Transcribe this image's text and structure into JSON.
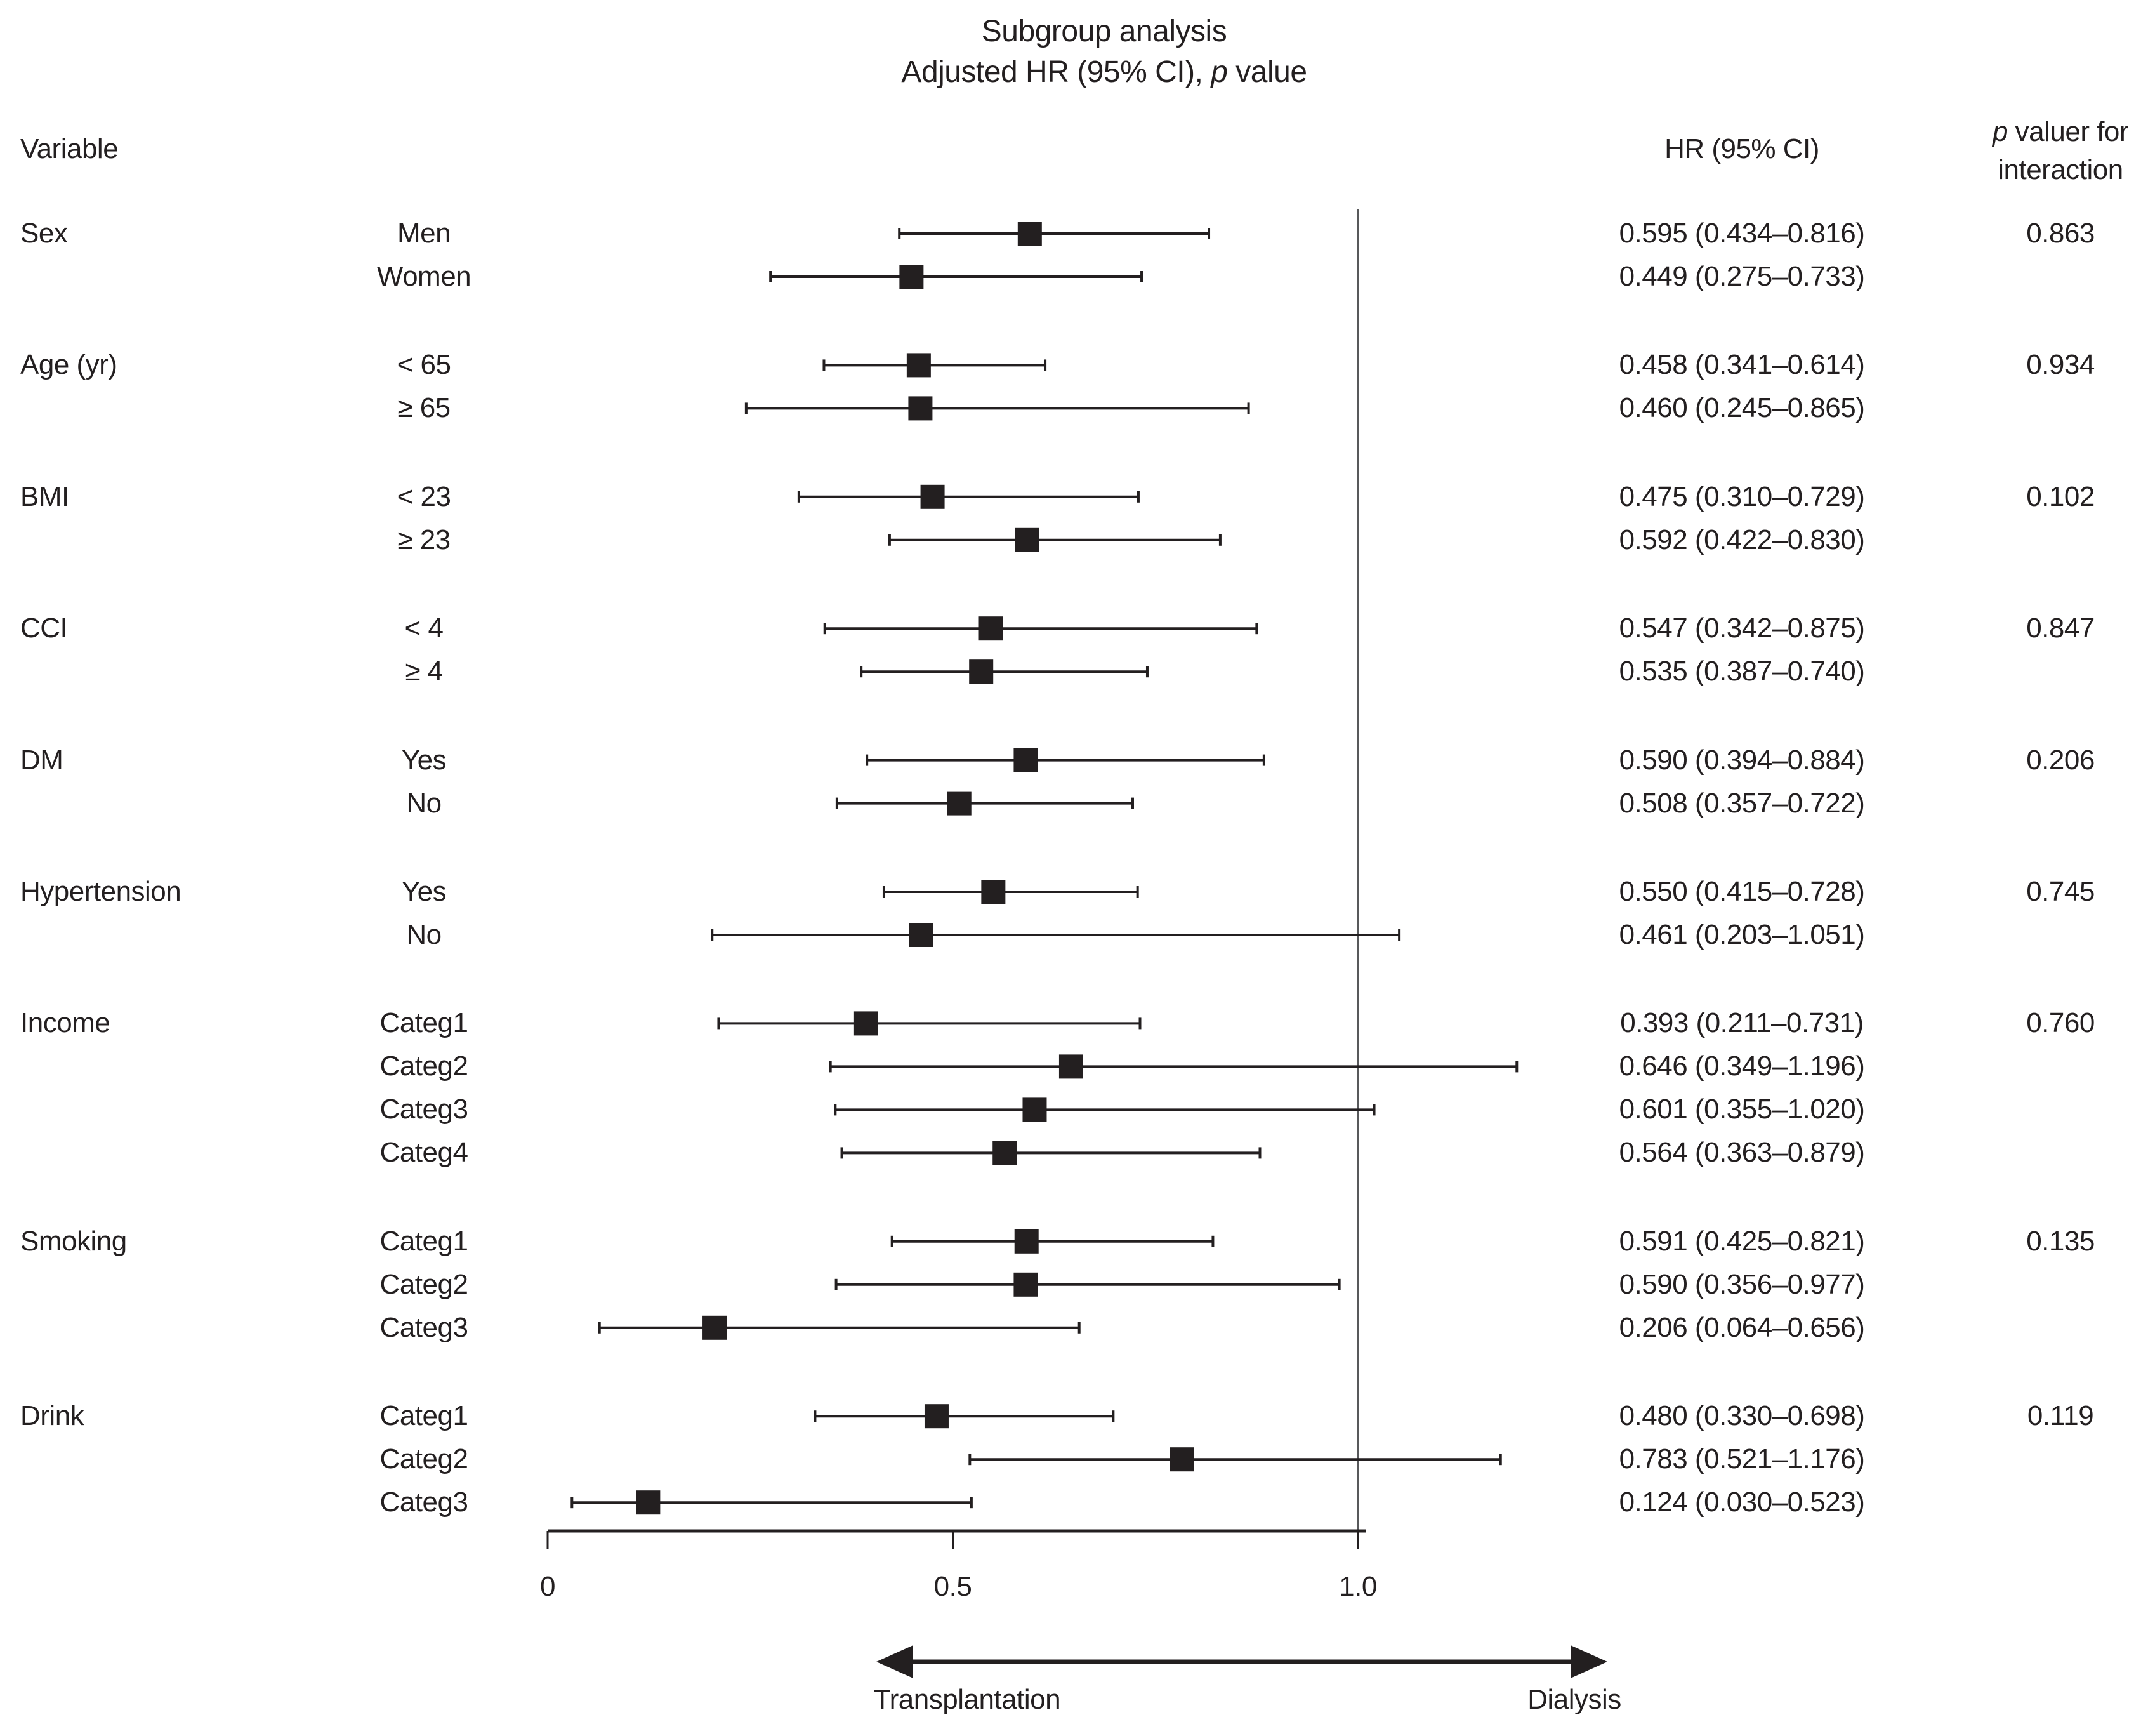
{
  "title": {
    "line1": "Subgroup analysis",
    "line2_prefix": "Adjusted HR (95% CI), ",
    "line2_italic": "p",
    "line2_suffix": " value"
  },
  "columns": {
    "variable_header": "Variable",
    "hr_header": "HR (95% CI)",
    "p_header_italic": "p",
    "p_header_rest": " valuer for",
    "p_header_line2": "interaction"
  },
  "axis": {
    "tick_values": [
      0,
      0.5,
      1.0
    ],
    "tick_labels": [
      "0",
      "0.5",
      "1.0"
    ],
    "reference_value": 1.0
  },
  "direction_arrow": {
    "left_label": "Transplantation",
    "right_label": "Dialysis"
  },
  "colors": {
    "ink": "#231f20",
    "reference_line": "#58595b"
  },
  "chart_data": {
    "type": "scatter",
    "subtype": "forest-plot",
    "title": "Subgroup analysis",
    "subtitle": "Adjusted HR (95% CI), p value",
    "xlim": [
      0,
      1.25
    ],
    "x_ticks": [
      0,
      0.5,
      1.0
    ],
    "x_tick_labels": [
      "0",
      "0.5",
      "1.0"
    ],
    "reference_line": 1.0,
    "left_direction_label": "Transplantation",
    "right_direction_label": "Dialysis",
    "groups": [
      {
        "variable": "Sex",
        "p_interaction": "0.863",
        "rows": [
          {
            "label": "Men",
            "hr": 0.595,
            "lo": 0.434,
            "hi": 0.816,
            "text": "0.595 (0.434–0.816)"
          },
          {
            "label": "Women",
            "hr": 0.449,
            "lo": 0.275,
            "hi": 0.733,
            "text": "0.449 (0.275–0.733)"
          }
        ]
      },
      {
        "variable": "Age (yr)",
        "p_interaction": "0.934",
        "rows": [
          {
            "label": "< 65",
            "hr": 0.458,
            "lo": 0.341,
            "hi": 0.614,
            "text": "0.458 (0.341–0.614)"
          },
          {
            "label": "≥ 65",
            "hr": 0.46,
            "lo": 0.245,
            "hi": 0.865,
            "text": "0.460 (0.245–0.865)"
          }
        ]
      },
      {
        "variable": "BMI",
        "p_interaction": "0.102",
        "rows": [
          {
            "label": "< 23",
            "hr": 0.475,
            "lo": 0.31,
            "hi": 0.729,
            "text": "0.475 (0.310–0.729)"
          },
          {
            "label": "≥ 23",
            "hr": 0.592,
            "lo": 0.422,
            "hi": 0.83,
            "text": "0.592 (0.422–0.830)"
          }
        ]
      },
      {
        "variable": "CCI",
        "p_interaction": "0.847",
        "rows": [
          {
            "label": "< 4",
            "hr": 0.547,
            "lo": 0.342,
            "hi": 0.875,
            "text": "0.547 (0.342–0.875)"
          },
          {
            "label": "≥ 4",
            "hr": 0.535,
            "lo": 0.387,
            "hi": 0.74,
            "text": "0.535 (0.387–0.740)"
          }
        ]
      },
      {
        "variable": "DM",
        "p_interaction": "0.206",
        "rows": [
          {
            "label": "Yes",
            "hr": 0.59,
            "lo": 0.394,
            "hi": 0.884,
            "text": "0.590 (0.394–0.884)"
          },
          {
            "label": "No",
            "hr": 0.508,
            "lo": 0.357,
            "hi": 0.722,
            "text": "0.508 (0.357–0.722)"
          }
        ]
      },
      {
        "variable": "Hypertension",
        "p_interaction": "0.745",
        "rows": [
          {
            "label": "Yes",
            "hr": 0.55,
            "lo": 0.415,
            "hi": 0.728,
            "text": "0.550 (0.415–0.728)"
          },
          {
            "label": "No",
            "hr": 0.461,
            "lo": 0.203,
            "hi": 1.051,
            "text": "0.461 (0.203–1.051)"
          }
        ]
      },
      {
        "variable": "Income",
        "p_interaction": "0.760",
        "rows": [
          {
            "label": "Categ1",
            "hr": 0.393,
            "lo": 0.211,
            "hi": 0.731,
            "text": "0.393 (0.211–0.731)"
          },
          {
            "label": "Categ2",
            "hr": 0.646,
            "lo": 0.349,
            "hi": 1.196,
            "text": "0.646 (0.349–1.196)"
          },
          {
            "label": "Categ3",
            "hr": 0.601,
            "lo": 0.355,
            "hi": 1.02,
            "text": "0.601 (0.355–1.020)"
          },
          {
            "label": "Categ4",
            "hr": 0.564,
            "lo": 0.363,
            "hi": 0.879,
            "text": "0.564 (0.363–0.879)"
          }
        ]
      },
      {
        "variable": "Smoking",
        "p_interaction": "0.135",
        "rows": [
          {
            "label": "Categ1",
            "hr": 0.591,
            "lo": 0.425,
            "hi": 0.821,
            "text": "0.591 (0.425–0.821)"
          },
          {
            "label": "Categ2",
            "hr": 0.59,
            "lo": 0.356,
            "hi": 0.977,
            "text": "0.590 (0.356–0.977)"
          },
          {
            "label": "Categ3",
            "hr": 0.206,
            "lo": 0.064,
            "hi": 0.656,
            "text": "0.206 (0.064–0.656)"
          }
        ]
      },
      {
        "variable": "Drink",
        "p_interaction": "0.119",
        "rows": [
          {
            "label": "Categ1",
            "hr": 0.48,
            "lo": 0.33,
            "hi": 0.698,
            "text": "0.480 (0.330–0.698)"
          },
          {
            "label": "Categ2",
            "hr": 0.783,
            "lo": 0.521,
            "hi": 1.176,
            "text": "0.783 (0.521–1.176)"
          },
          {
            "label": "Categ3",
            "hr": 0.124,
            "lo": 0.03,
            "hi": 0.523,
            "text": "0.124 (0.030–0.523)"
          }
        ]
      }
    ]
  }
}
